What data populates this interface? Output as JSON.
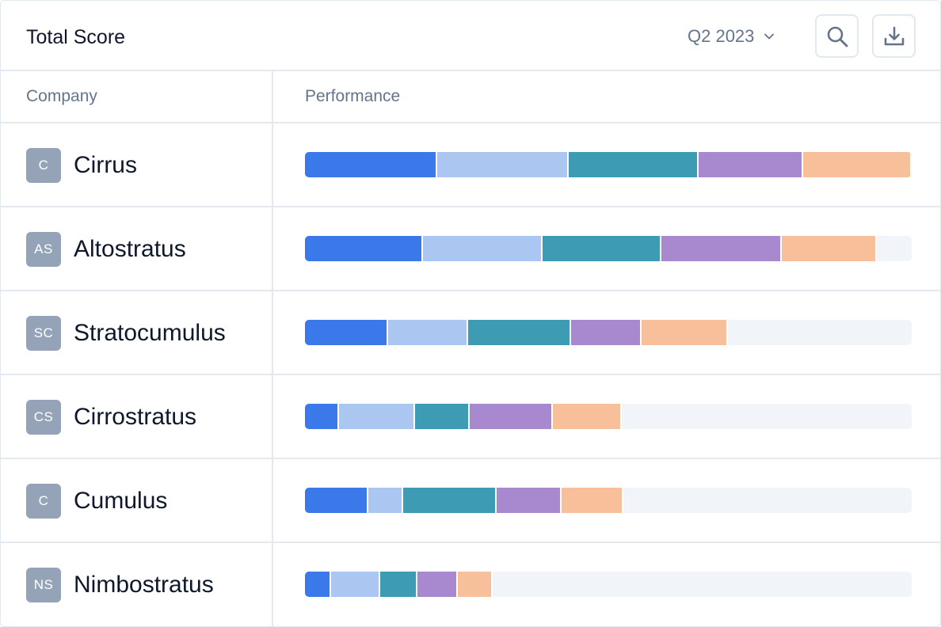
{
  "header": {
    "title": "Total Score",
    "period": "Q2 2023",
    "search_icon": "search-icon",
    "download_icon": "download-icon"
  },
  "columns": {
    "company": "Company",
    "performance": "Performance"
  },
  "colors": {
    "seg1": "#3b78ea",
    "seg2": "#abc6f1",
    "seg3": "#3d9bb4",
    "seg4": "#a889cf",
    "seg5": "#f7c09a",
    "track": "#f1f5f9",
    "avatar": "#94a3b8"
  },
  "rows": [
    {
      "initials": "C",
      "name": "Cirrus",
      "segments": [
        21.8,
        21.7,
        21.4,
        17.2,
        17.9
      ]
    },
    {
      "initials": "AS",
      "name": "Altostratus",
      "segments": [
        19.4,
        19.8,
        19.6,
        19.8,
        15.6
      ]
    },
    {
      "initials": "SC",
      "name": "Stratocumulus",
      "segments": [
        13.7,
        13.2,
        16.9,
        11.7,
        14.2
      ]
    },
    {
      "initials": "CS",
      "name": "Cirrostratus",
      "segments": [
        5.6,
        12.5,
        9.1,
        13.7,
        11.3
      ]
    },
    {
      "initials": "C",
      "name": "Cumulus",
      "segments": [
        10.5,
        5.7,
        15.4,
        10.7,
        10.2
      ]
    },
    {
      "initials": "NS",
      "name": "Nimbostratus",
      "segments": [
        4.3,
        8.1,
        6.1,
        6.7,
        5.7
      ]
    }
  ]
}
